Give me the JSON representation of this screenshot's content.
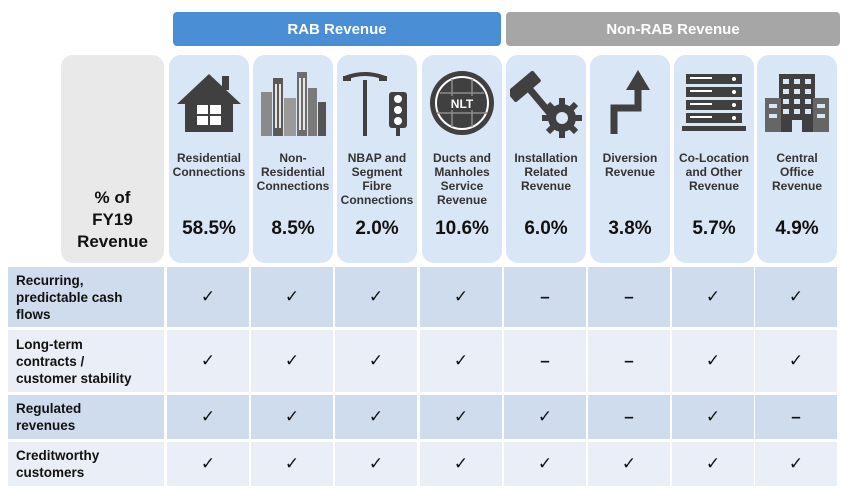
{
  "groups": {
    "rab": "RAB Revenue",
    "non_rab": "Non-RAB Revenue"
  },
  "pct_label": [
    "% of",
    "FY19",
    "Revenue"
  ],
  "columns": [
    {
      "icon": "house-icon",
      "label": "Residential\nConnections",
      "value": "58.5%"
    },
    {
      "icon": "city-buildings-icon",
      "label": "Non-\nResidential\nConnections",
      "value": "8.5%"
    },
    {
      "icon": "streetlight-traffic-light-icon",
      "label": "NBAP and\nSegment\nFibre\nConnections",
      "value": "2.0%"
    },
    {
      "icon": "manhole-cover-icon",
      "icon_text": "NLT",
      "label": "Ducts and\nManholes\nService\nRevenue",
      "value": "10.6%"
    },
    {
      "icon": "hammer-gear-icon",
      "label": "Installation\nRelated\nRevenue",
      "value": "6.0%"
    },
    {
      "icon": "diversion-arrow-icon",
      "label": "Diversion\nRevenue",
      "value": "3.8%"
    },
    {
      "icon": "server-rack-icon",
      "label": "Co-Location\nand Other\nRevenue",
      "value": "5.7%"
    },
    {
      "icon": "office-building-icon",
      "label": "Central\nOffice\nRevenue",
      "value": "4.9%"
    }
  ],
  "rows": [
    {
      "label": "Recurring,\npredictable cash\nflows",
      "cells": [
        "✓",
        "✓",
        "✓",
        "✓",
        "–",
        "–",
        "✓",
        "✓"
      ]
    },
    {
      "label": "Long-term\ncontracts /\ncustomer stability",
      "cells": [
        "✓",
        "✓",
        "✓",
        "✓",
        "–",
        "–",
        "✓",
        "✓"
      ]
    },
    {
      "label": "Regulated\nrevenues",
      "cells": [
        "✓",
        "✓",
        "✓",
        "✓",
        "✓",
        "–",
        "✓",
        "–"
      ]
    },
    {
      "label": "Creditworthy\ncustomers",
      "cells": [
        "✓",
        "✓",
        "✓",
        "✓",
        "✓",
        "✓",
        "✓",
        "✓"
      ]
    }
  ],
  "colors": {
    "rab": "#4a8fd6",
    "non_rab": "#a6a6a6",
    "card": "#d9e6f5",
    "row_dark": "#cfdcee",
    "row_light": "#e9eef7",
    "icon": "#404040"
  }
}
